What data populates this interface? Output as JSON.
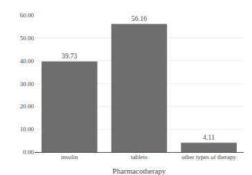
{
  "chart_data": {
    "type": "bar",
    "xlabel": "Pharmacotherapy",
    "categories": [
      "insulin",
      "tablets",
      "other types of therapy"
    ],
    "values": [
      39.73,
      56.16,
      4.11
    ],
    "color": "#6e6e6e",
    "ylim": [
      0,
      60
    ],
    "yticks": [
      {
        "value": 0,
        "label": "0.00"
      },
      {
        "value": 10,
        "label": "10.00"
      },
      {
        "value": 20,
        "label": "20.00"
      },
      {
        "value": 30,
        "label": "30.00"
      },
      {
        "value": 40,
        "label": "40.00"
      },
      {
        "value": 50,
        "label": "50.00"
      },
      {
        "value": 60,
        "label": "60.00"
      }
    ],
    "grid": true,
    "data_labels": true
  }
}
